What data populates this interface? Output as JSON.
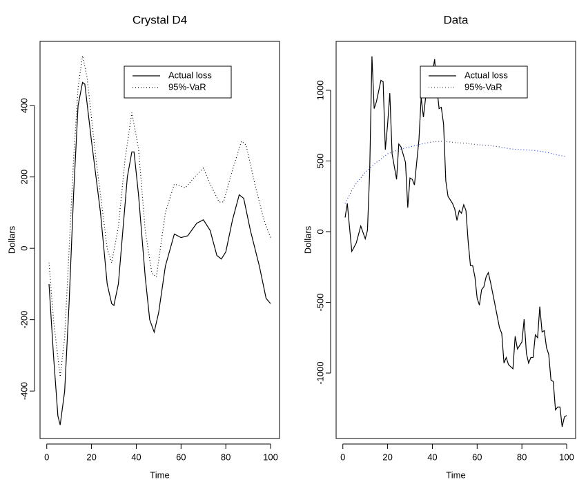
{
  "chart_data": [
    {
      "type": "line",
      "title": "Crystal D4",
      "xlabel": "Time",
      "ylabel": "Dollars",
      "xlim": [
        -3,
        104
      ],
      "ylim": [
        -533,
        580
      ],
      "xticks": [
        0,
        20,
        40,
        60,
        80,
        100
      ],
      "yticks": [
        -400,
        -200,
        0,
        200,
        400
      ],
      "legend": "topright",
      "series": [
        {
          "name": "Actual loss",
          "color": "#000000",
          "dash": "solid",
          "x": [
            1,
            3,
            5,
            6,
            8,
            10,
            12,
            14,
            16,
            17,
            20,
            24,
            27,
            29,
            30,
            32,
            34,
            36,
            38,
            39,
            41,
            44,
            46,
            48,
            50,
            53,
            57,
            60,
            63,
            67,
            70,
            73,
            76,
            78,
            80,
            83,
            86,
            88,
            91,
            95,
            98,
            100
          ],
          "values": [
            -100,
            -300,
            -470,
            -495,
            -400,
            -150,
            150,
            400,
            465,
            460,
            300,
            100,
            -100,
            -155,
            -160,
            -100,
            50,
            200,
            270,
            270,
            150,
            -80,
            -200,
            -235,
            -180,
            -50,
            40,
            30,
            35,
            70,
            80,
            50,
            -20,
            -30,
            -10,
            80,
            150,
            140,
            50,
            -50,
            -140,
            -155
          ]
        },
        {
          "name": "95%-VaR",
          "color": "#000000",
          "dash": "dotted",
          "x": [
            1,
            3,
            6,
            8,
            10,
            12,
            14,
            16,
            18,
            22,
            27,
            29,
            32,
            35,
            38,
            41,
            44,
            47,
            49,
            53,
            57,
            62,
            66,
            70,
            73,
            77,
            79,
            83,
            87,
            89,
            93,
            97,
            100
          ],
          "values": [
            -40,
            -200,
            -360,
            -250,
            0,
            250,
            450,
            540,
            480,
            250,
            0,
            -40,
            60,
            250,
            380,
            280,
            50,
            -70,
            -80,
            100,
            180,
            170,
            200,
            225,
            180,
            130,
            130,
            220,
            300,
            290,
            180,
            80,
            30
          ]
        }
      ]
    },
    {
      "type": "line",
      "title": "Data",
      "xlabel": "Time",
      "ylabel": "Dollars",
      "xlim": [
        -3,
        104
      ],
      "ylim": [
        -1463,
        1346
      ],
      "xticks": [
        0,
        20,
        40,
        60,
        80,
        100
      ],
      "yticks": [
        -1000,
        -500,
        0,
        500,
        1000
      ],
      "legend": "topright",
      "series": [
        {
          "name": "Actual loss",
          "color": "#000000",
          "dash": "solid",
          "x": [
            1,
            2,
            4,
            6,
            8,
            10,
            11,
            12,
            13,
            14,
            15,
            17,
            18,
            19,
            20,
            21,
            22,
            24,
            25,
            26,
            28,
            29,
            30,
            31,
            32,
            34,
            35,
            36,
            37,
            39,
            41,
            42,
            43,
            44,
            45,
            46,
            47,
            49,
            50,
            51,
            52,
            53,
            54,
            55,
            56,
            57,
            58,
            59,
            60,
            61,
            62,
            63,
            64,
            65,
            66,
            68,
            70,
            71,
            72,
            73,
            74,
            76,
            77,
            78,
            80,
            81,
            82,
            83,
            84,
            85,
            86,
            87,
            88,
            89,
            90,
            91,
            92,
            93,
            94,
            95,
            96,
            97,
            98,
            99,
            100
          ],
          "values": [
            100,
            200,
            -140,
            -80,
            40,
            -50,
            10,
            420,
            1240,
            870,
            920,
            1070,
            1060,
            580,
            760,
            980,
            550,
            370,
            620,
            600,
            490,
            170,
            380,
            370,
            330,
            650,
            950,
            810,
            950,
            1000,
            1220,
            1020,
            870,
            880,
            760,
            360,
            250,
            200,
            160,
            80,
            150,
            130,
            190,
            150,
            -70,
            -240,
            -240,
            -320,
            -470,
            -520,
            -410,
            -390,
            -320,
            -290,
            -360,
            -520,
            -680,
            -720,
            -930,
            -890,
            -940,
            -970,
            -740,
            -830,
            -780,
            -620,
            -860,
            -930,
            -890,
            -890,
            -730,
            -750,
            -530,
            -710,
            -700,
            -820,
            -870,
            -1050,
            -1060,
            -1260,
            -1240,
            -1240,
            -1380,
            -1310,
            -1300
          ]
        },
        {
          "name": "95%-VaR",
          "color": "#2040c8",
          "dash": "dotted",
          "x": [
            1,
            5,
            10,
            15,
            20,
            25,
            30,
            35,
            40,
            45,
            50,
            55,
            60,
            65,
            70,
            75,
            80,
            85,
            90,
            95,
            100
          ],
          "values": [
            200,
            320,
            420,
            490,
            550,
            580,
            600,
            620,
            635,
            640,
            630,
            625,
            615,
            610,
            600,
            585,
            580,
            575,
            565,
            545,
            530
          ]
        }
      ]
    }
  ]
}
